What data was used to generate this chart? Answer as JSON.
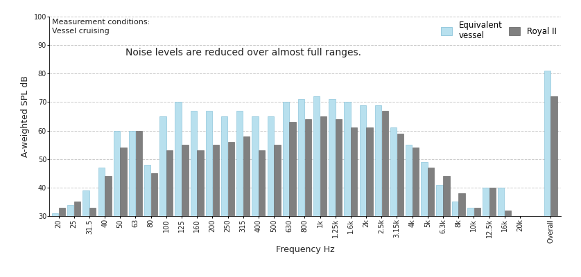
{
  "xlabel": "Frequency Hz",
  "ylabel": "A-weighted SPL dB",
  "annotation": "Noise levels are reduced over almost full ranges.",
  "measurement_note": "Measurement conditions:\nVessel cruising",
  "legend_label1": "Equivalent\nvessel",
  "legend_label2": "Royal II",
  "ylim": [
    30,
    100
  ],
  "yticks": [
    30,
    40,
    50,
    60,
    70,
    80,
    90,
    100
  ],
  "categories": [
    "20",
    "25",
    "31.5",
    "40",
    "50",
    "63",
    "80",
    "100",
    "125",
    "160",
    "200",
    "250",
    "315",
    "400",
    "500",
    "630",
    "800",
    "1k",
    "1.25k",
    "1.6k",
    "2k",
    "2.5k",
    "3.15k",
    "4k",
    "5k",
    "6.3k",
    "8k",
    "10k",
    "12.5k",
    "16k",
    "20k",
    "Overall"
  ],
  "values_vessel": [
    31,
    34,
    39,
    47,
    60,
    60,
    48,
    65,
    70,
    67,
    67,
    65,
    67,
    65,
    65,
    70,
    71,
    72,
    71,
    70,
    69,
    69,
    61,
    55,
    49,
    41,
    35,
    33,
    40,
    40,
    30,
    81
  ],
  "values_royal": [
    33,
    35,
    33,
    44,
    54,
    60,
    45,
    53,
    55,
    53,
    55,
    56,
    58,
    53,
    55,
    63,
    64,
    65,
    64,
    61,
    61,
    67,
    59,
    54,
    47,
    44,
    38,
    33,
    40,
    32,
    30,
    72
  ],
  "bar_color_vessel": "#b8e0ee",
  "bar_color_royal": "#808080",
  "bar_edge_vessel": "#7bbbd4",
  "bar_edge_royal": "#606060",
  "bg_color": "#ffffff",
  "grid_color": "#c8c8c8",
  "text_color": "#222222",
  "label_fontsize": 9,
  "tick_fontsize": 7,
  "annot_fontsize": 10,
  "note_fontsize": 8,
  "legend_fontsize": 8.5
}
